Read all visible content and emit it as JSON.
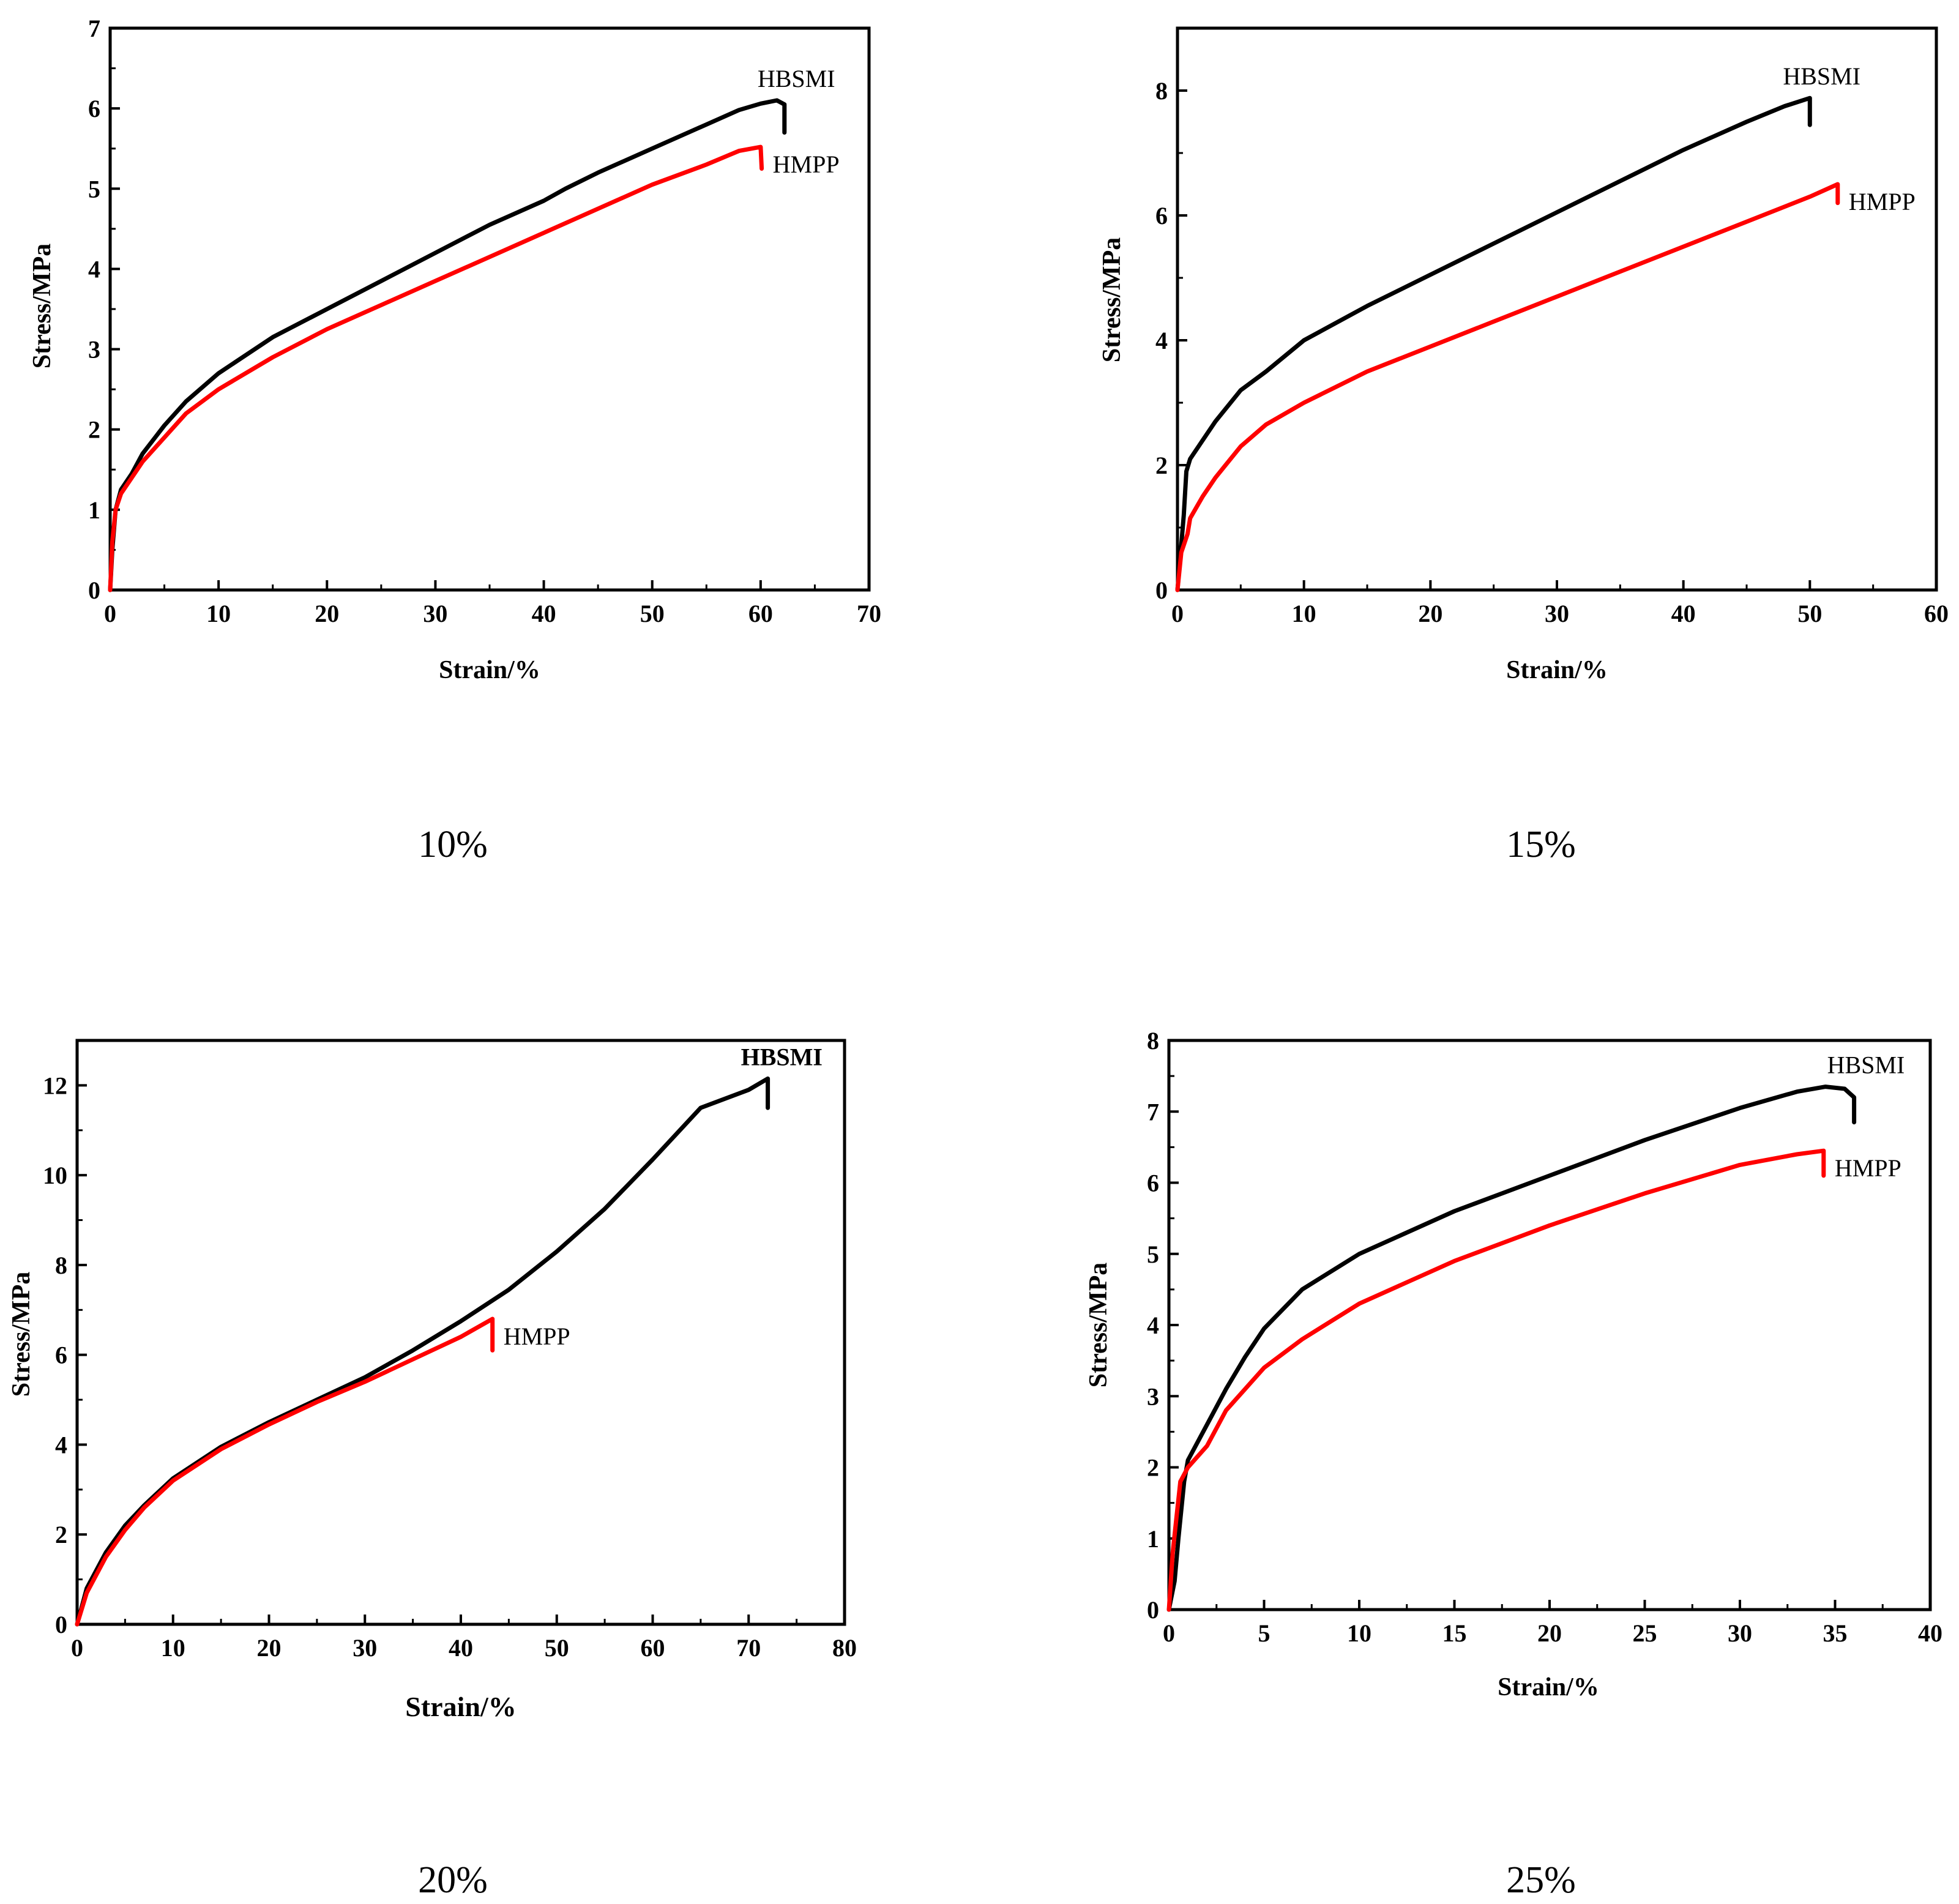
{
  "chart_data": [
    {
      "type": "line",
      "caption": "10%",
      "xlabel": "Strain/%",
      "ylabel": "Stress/MPa",
      "xlim": [
        0,
        70
      ],
      "ylim": [
        0,
        7
      ],
      "xticks": [
        0,
        10,
        20,
        30,
        40,
        50,
        60,
        70
      ],
      "yticks": [
        0,
        1,
        2,
        3,
        4,
        5,
        6,
        7
      ],
      "xtick_labels": [
        "0",
        "10",
        "20",
        "30",
        "40",
        "50",
        "60",
        "70"
      ],
      "ytick_labels": [
        "0",
        "1",
        "2",
        "3",
        "4",
        "5",
        "6",
        "7"
      ],
      "series": [
        {
          "name": "HBSMI",
          "color": "#000000",
          "x": [
            0,
            0.2,
            0.5,
            1,
            2,
            3,
            5,
            7,
            10,
            15,
            20,
            25,
            30,
            35,
            40,
            42,
            45,
            50,
            55,
            58,
            60,
            61.5,
            62.2,
            62.2
          ],
          "y": [
            0,
            0.5,
            1.0,
            1.25,
            1.45,
            1.7,
            2.05,
            2.35,
            2.7,
            3.15,
            3.5,
            3.85,
            4.2,
            4.55,
            4.85,
            5.0,
            5.2,
            5.5,
            5.8,
            5.98,
            6.06,
            6.1,
            6.05,
            5.7
          ],
          "end_label": "HBSMI",
          "label_bold": false
        },
        {
          "name": "HMPP",
          "color": "#ff0000",
          "x": [
            0,
            0.2,
            0.5,
            1,
            2,
            3,
            5,
            7,
            10,
            15,
            20,
            25,
            30,
            35,
            40,
            45,
            50,
            55,
            58,
            60,
            60,
            60.1
          ],
          "y": [
            0,
            0.6,
            1.0,
            1.2,
            1.4,
            1.6,
            1.9,
            2.2,
            2.5,
            2.9,
            3.25,
            3.55,
            3.85,
            4.15,
            4.45,
            4.75,
            5.05,
            5.3,
            5.47,
            5.52,
            5.52,
            5.25
          ],
          "end_label": "HMPP",
          "label_bold": false
        }
      ]
    },
    {
      "type": "line",
      "caption": "15%",
      "xlabel": "Strain/%",
      "ylabel": "Stress/MPa",
      "xlim": [
        0,
        60
      ],
      "ylim": [
        0,
        9
      ],
      "xticks": [
        0,
        10,
        20,
        30,
        40,
        50,
        60
      ],
      "yticks": [
        0,
        2,
        4,
        6,
        8
      ],
      "xtick_labels": [
        "0",
        "10",
        "20",
        "30",
        "40",
        "50",
        "60"
      ],
      "ytick_labels": [
        "0",
        "2",
        "4",
        "6",
        "8"
      ],
      "series": [
        {
          "name": "HBSMI",
          "color": "#000000",
          "x": [
            0,
            0.5,
            0.7,
            1,
            2,
            3,
            5,
            7,
            10,
            15,
            20,
            25,
            30,
            35,
            40,
            45,
            48,
            50,
            50
          ],
          "y": [
            0,
            1.2,
            1.9,
            2.1,
            2.4,
            2.7,
            3.2,
            3.5,
            4.0,
            4.55,
            5.05,
            5.55,
            6.05,
            6.55,
            7.05,
            7.5,
            7.75,
            7.88,
            7.45
          ],
          "end_label": "HBSMI",
          "label_bold": false
        },
        {
          "name": "HMPP",
          "color": "#ff0000",
          "x": [
            0,
            0.3,
            0.8,
            1,
            2,
            3,
            5,
            7,
            10,
            15,
            20,
            25,
            30,
            35,
            40,
            45,
            50,
            52.2,
            52.2
          ],
          "y": [
            0,
            0.6,
            0.9,
            1.15,
            1.5,
            1.8,
            2.3,
            2.65,
            3.0,
            3.5,
            3.9,
            4.3,
            4.7,
            5.1,
            5.5,
            5.9,
            6.3,
            6.5,
            6.2
          ],
          "end_label": "HMPP",
          "label_bold": false
        }
      ]
    },
    {
      "type": "line",
      "caption": "20%",
      "xlabel": "Strain/%",
      "ylabel": "Stress/MPa",
      "xlim": [
        0,
        80
      ],
      "ylim": [
        0,
        13
      ],
      "xticks": [
        0,
        10,
        20,
        30,
        40,
        50,
        60,
        70,
        80
      ],
      "yticks": [
        0,
        2,
        4,
        6,
        8,
        10,
        12
      ],
      "xtick_labels": [
        "0",
        "10",
        "20",
        "30",
        "40",
        "50",
        "60",
        "70",
        "80"
      ],
      "ytick_labels": [
        "0",
        "2",
        "4",
        "6",
        "8",
        "10",
        "12"
      ],
      "series": [
        {
          "name": "HBSMI",
          "color": "#000000",
          "x": [
            0,
            1,
            3,
            5,
            7,
            10,
            15,
            20,
            25,
            30,
            35,
            40,
            45,
            50,
            55,
            60,
            65,
            70,
            72,
            72
          ],
          "y": [
            0,
            0.8,
            1.6,
            2.2,
            2.65,
            3.25,
            3.95,
            4.5,
            5.0,
            5.5,
            6.1,
            6.75,
            7.45,
            8.3,
            9.25,
            10.35,
            11.5,
            11.9,
            12.15,
            11.5
          ],
          "end_label": "HBSMI",
          "label_bold": true
        },
        {
          "name": "HMPP",
          "color": "#ff0000",
          "x": [
            0,
            1,
            3,
            5,
            7,
            10,
            15,
            20,
            25,
            30,
            35,
            40,
            43.3,
            43.3
          ],
          "y": [
            0,
            0.7,
            1.5,
            2.1,
            2.6,
            3.2,
            3.9,
            4.45,
            4.95,
            5.4,
            5.9,
            6.4,
            6.8,
            6.1
          ],
          "end_label": "HMPP",
          "label_bold": false
        }
      ]
    },
    {
      "type": "line",
      "caption": "25%",
      "xlabel": "Strain/%",
      "ylabel": "Stress/MPa",
      "xlim": [
        0,
        40
      ],
      "ylim": [
        0,
        8
      ],
      "xticks": [
        0,
        5,
        10,
        15,
        20,
        25,
        30,
        35,
        40
      ],
      "yticks": [
        0,
        1,
        2,
        3,
        4,
        5,
        6,
        7,
        8
      ],
      "xtick_labels": [
        "0",
        "5",
        "10",
        "15",
        "20",
        "25",
        "30",
        "35",
        "40"
      ],
      "ytick_labels": [
        "0",
        "1",
        "2",
        "3",
        "4",
        "5",
        "6",
        "7",
        "8"
      ],
      "series": [
        {
          "name": "HBSMI",
          "color": "#000000",
          "x": [
            0,
            0.3,
            0.5,
            0.8,
            1,
            2,
            3,
            4,
            5,
            7,
            10,
            15,
            20,
            25,
            30,
            33,
            34.5,
            35.5,
            36,
            36
          ],
          "y": [
            0,
            0.4,
            1.0,
            1.8,
            2.1,
            2.6,
            3.1,
            3.55,
            3.95,
            4.5,
            5.0,
            5.6,
            6.1,
            6.6,
            7.05,
            7.28,
            7.35,
            7.32,
            7.2,
            6.85
          ],
          "end_label": "HBSMI",
          "label_bold": false
        },
        {
          "name": "HMPP",
          "color": "#ff0000",
          "x": [
            0,
            0.2,
            0.4,
            0.6,
            1,
            2,
            3,
            5,
            7,
            10,
            15,
            20,
            25,
            30,
            33,
            34.4,
            34.4
          ],
          "y": [
            0,
            0.8,
            1.3,
            1.8,
            2.0,
            2.3,
            2.8,
            3.4,
            3.8,
            4.3,
            4.9,
            5.4,
            5.85,
            6.25,
            6.4,
            6.45,
            6.1
          ],
          "end_label": "HMPP",
          "label_bold": false
        }
      ]
    }
  ]
}
